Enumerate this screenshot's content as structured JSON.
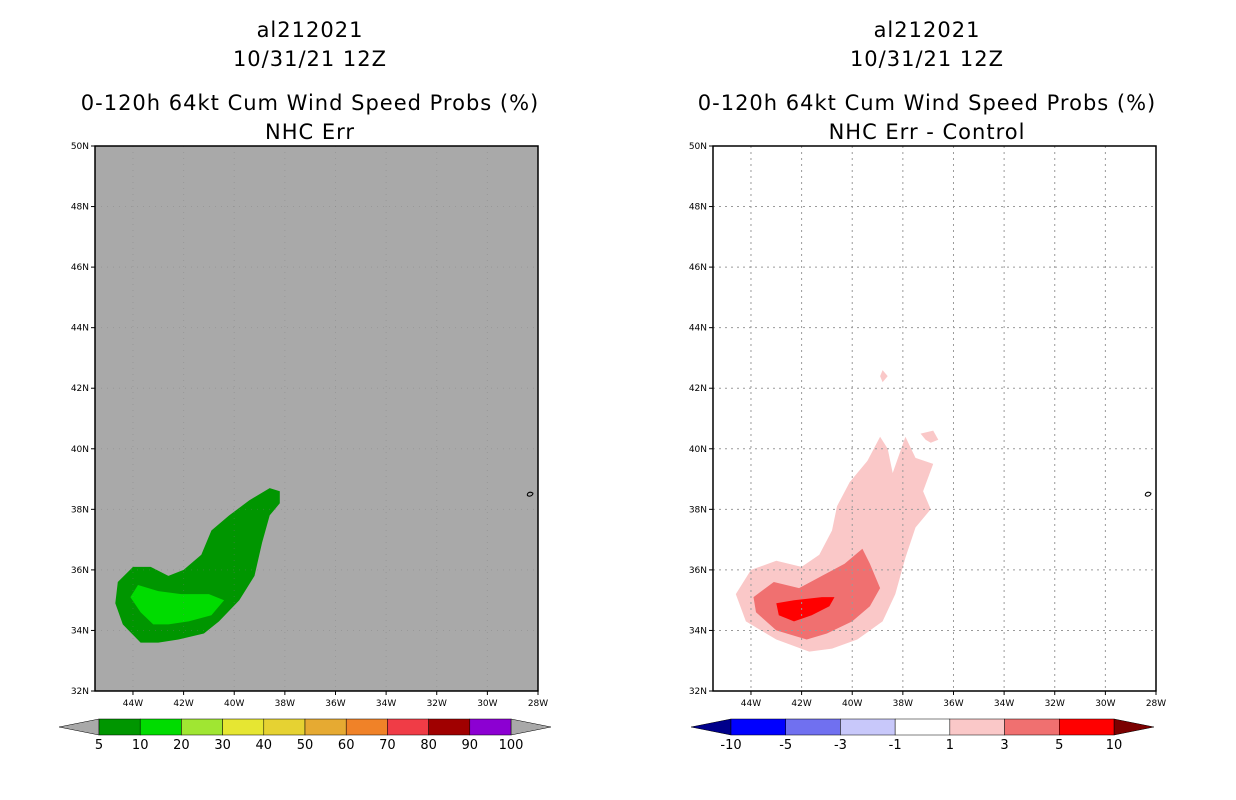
{
  "left": {
    "storm_id": "al212021",
    "datetime": "10/31/21 12Z",
    "product": "0-120h 64kt Cum Wind Speed Probs (%)",
    "subtitle": "NHC Err",
    "background_color": "#a9a9a9",
    "colorbar": {
      "colors": [
        "#009600",
        "#00dc00",
        "#a0e632",
        "#e6e632",
        "#e6d232",
        "#e6aa32",
        "#f08228",
        "#f03c46",
        "#a00000",
        "#8c00d2"
      ],
      "labels": [
        "5",
        "10",
        "20",
        "30",
        "40",
        "50",
        "60",
        "70",
        "80",
        "90",
        "100"
      ],
      "end_arrow_color": "#a9a9a9"
    }
  },
  "right": {
    "storm_id": "al212021",
    "datetime": "10/31/21 12Z",
    "product": "0-120h 64kt Cum Wind Speed Probs (%)",
    "subtitle": "NHC Err - Control",
    "background_color": "#ffffff",
    "colorbar": {
      "colors": [
        "#0000ff",
        "#7070f0",
        "#c8c8fa",
        "#ffffff",
        "#fac8c8",
        "#f07070",
        "#ff0000"
      ],
      "labels": [
        "-10",
        "-5",
        "-3",
        "-1",
        "1",
        "3",
        "5",
        "10"
      ],
      "left_arrow_color": "#00008b",
      "right_arrow_color": "#7b0000"
    }
  },
  "chart_data": [
    {
      "type": "contour_map",
      "panel": "left",
      "title": "0-120h 64kt Cum Wind Speed Probs (%)",
      "subtitle": "NHC Err",
      "x_ticks": [
        "44W",
        "42W",
        "40W",
        "38W",
        "36W",
        "34W",
        "32W",
        "30W",
        "28W"
      ],
      "y_ticks": [
        "32N",
        "34N",
        "36N",
        "38N",
        "40N",
        "42N",
        "44N",
        "46N",
        "48N",
        "50N"
      ],
      "lon_range": [
        -45.5,
        -28
      ],
      "lat_range": [
        32,
        50
      ],
      "grid": false,
      "regions": [
        {
          "level": "5-10",
          "color": "#009600",
          "outline": [
            [
              -43.7,
              33.6
            ],
            [
              -44.4,
              34.2
            ],
            [
              -44.7,
              34.9
            ],
            [
              -44.6,
              35.6
            ],
            [
              -44.0,
              36.1
            ],
            [
              -43.3,
              36.1
            ],
            [
              -42.6,
              35.8
            ],
            [
              -42.0,
              36.0
            ],
            [
              -41.3,
              36.5
            ],
            [
              -40.9,
              37.3
            ],
            [
              -40.2,
              37.8
            ],
            [
              -39.4,
              38.3
            ],
            [
              -38.6,
              38.7
            ],
            [
              -38.2,
              38.6
            ],
            [
              -38.2,
              38.2
            ],
            [
              -38.6,
              37.8
            ],
            [
              -38.9,
              36.9
            ],
            [
              -39.2,
              35.8
            ],
            [
              -39.8,
              35.0
            ],
            [
              -40.6,
              34.3
            ],
            [
              -41.2,
              33.9
            ],
            [
              -42.2,
              33.7
            ],
            [
              -43.0,
              33.6
            ]
          ]
        },
        {
          "level": "10-20",
          "color": "#00dc00",
          "outline": [
            [
              -43.7,
              34.6
            ],
            [
              -44.1,
              35.1
            ],
            [
              -43.8,
              35.5
            ],
            [
              -43.0,
              35.3
            ],
            [
              -42.1,
              35.2
            ],
            [
              -41.0,
              35.2
            ],
            [
              -40.4,
              35.0
            ],
            [
              -40.9,
              34.5
            ],
            [
              -41.8,
              34.3
            ],
            [
              -42.6,
              34.2
            ],
            [
              -43.2,
              34.2
            ]
          ]
        }
      ]
    },
    {
      "type": "contour_map",
      "panel": "right",
      "title": "0-120h 64kt Cum Wind Speed Probs (%)",
      "subtitle": "NHC Err - Control",
      "x_ticks": [
        "44W",
        "42W",
        "40W",
        "38W",
        "36W",
        "34W",
        "32W",
        "30W",
        "28W"
      ],
      "y_ticks": [
        "32N",
        "34N",
        "36N",
        "38N",
        "40N",
        "42N",
        "44N",
        "46N",
        "48N",
        "50N"
      ],
      "lon_range": [
        -45.5,
        -28
      ],
      "lat_range": [
        32,
        50
      ],
      "grid": true,
      "regions": [
        {
          "level": "1-3",
          "color": "#fac8c8",
          "outline": [
            [
              -41.7,
              33.3
            ],
            [
              -43.0,
              33.7
            ],
            [
              -44.2,
              34.3
            ],
            [
              -44.6,
              35.2
            ],
            [
              -44.0,
              36.0
            ],
            [
              -43.0,
              36.3
            ],
            [
              -42.0,
              36.1
            ],
            [
              -41.3,
              36.5
            ],
            [
              -40.8,
              37.3
            ],
            [
              -40.6,
              38.1
            ],
            [
              -40.1,
              38.9
            ],
            [
              -39.4,
              39.6
            ],
            [
              -38.9,
              40.4
            ],
            [
              -38.6,
              40.0
            ],
            [
              -38.4,
              39.2
            ],
            [
              -37.9,
              40.4
            ],
            [
              -37.5,
              39.7
            ],
            [
              -36.8,
              39.5
            ],
            [
              -37.2,
              38.6
            ],
            [
              -36.9,
              38.0
            ],
            [
              -37.5,
              37.4
            ],
            [
              -37.9,
              36.4
            ],
            [
              -38.3,
              35.2
            ],
            [
              -38.8,
              34.3
            ],
            [
              -39.8,
              33.7
            ],
            [
              -40.8,
              33.4
            ]
          ]
        },
        {
          "level": "1-3",
          "color": "#fac8c8",
          "outline": [
            [
              -38.8,
              42.6
            ],
            [
              -38.9,
              42.4
            ],
            [
              -38.8,
              42.2
            ],
            [
              -38.6,
              42.4
            ]
          ]
        },
        {
          "level": "1-3",
          "color": "#fac8c8",
          "outline": [
            [
              -37.3,
              40.5
            ],
            [
              -36.8,
              40.6
            ],
            [
              -36.6,
              40.3
            ],
            [
              -36.9,
              40.2
            ],
            [
              -37.1,
              40.3
            ]
          ]
        },
        {
          "level": "3-5",
          "color": "#f07070",
          "outline": [
            [
              -41.8,
              33.7
            ],
            [
              -43.0,
              34.0
            ],
            [
              -43.8,
              34.6
            ],
            [
              -43.9,
              35.1
            ],
            [
              -43.1,
              35.6
            ],
            [
              -42.1,
              35.4
            ],
            [
              -41.2,
              35.8
            ],
            [
              -40.3,
              36.2
            ],
            [
              -39.6,
              36.7
            ],
            [
              -39.3,
              36.2
            ],
            [
              -38.9,
              35.4
            ],
            [
              -39.3,
              34.8
            ],
            [
              -40.0,
              34.3
            ],
            [
              -41.0,
              33.9
            ]
          ]
        },
        {
          "level": "5-10",
          "color": "#ff0000",
          "outline": [
            [
              -42.3,
              34.3
            ],
            [
              -42.9,
              34.5
            ],
            [
              -43.0,
              34.9
            ],
            [
              -42.3,
              35.0
            ],
            [
              -41.2,
              35.1
            ],
            [
              -40.7,
              35.1
            ],
            [
              -40.9,
              34.8
            ],
            [
              -41.6,
              34.5
            ]
          ]
        }
      ]
    }
  ]
}
